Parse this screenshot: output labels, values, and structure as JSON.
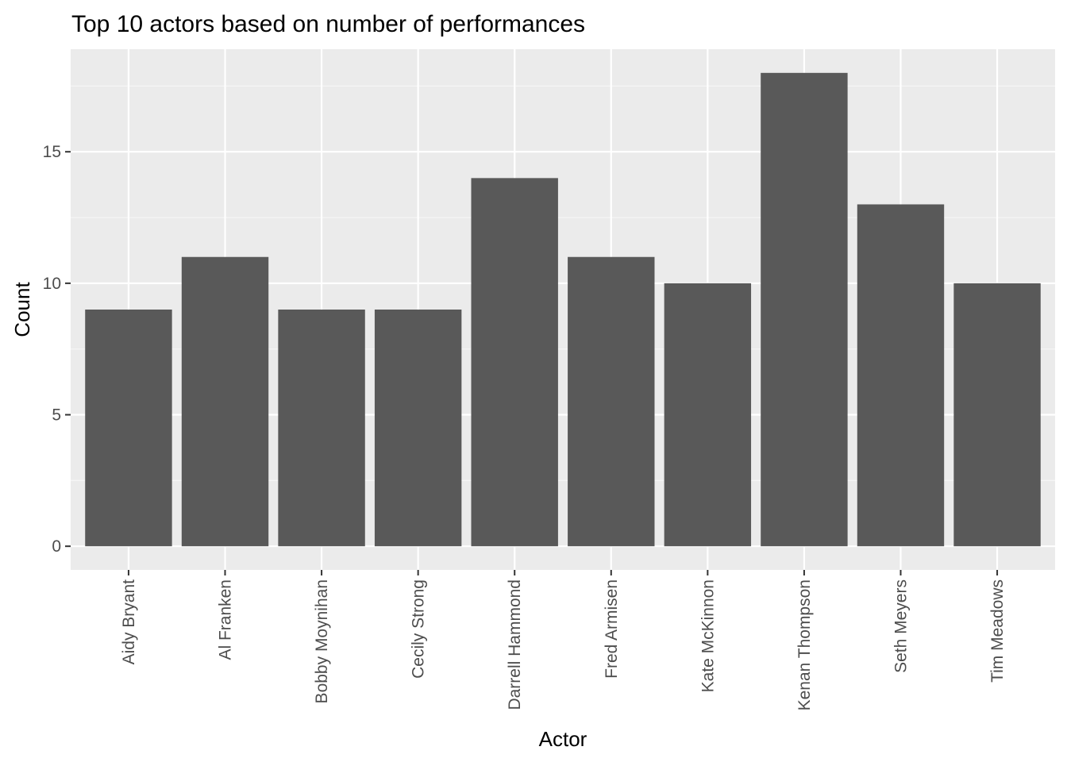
{
  "chart_data": {
    "type": "bar",
    "title": "Top 10 actors based on number of performances",
    "xlabel": "Actor",
    "ylabel": "Count",
    "categories": [
      "Aidy Bryant",
      "Al Franken",
      "Bobby Moynihan",
      "Cecily Strong",
      "Darrell Hammond",
      "Fred Armisen",
      "Kate McKinnon",
      "Kenan Thompson",
      "Seth Meyers",
      "Tim Meadows"
    ],
    "values": [
      9,
      11,
      9,
      9,
      14,
      11,
      10,
      18,
      13,
      10
    ],
    "ylim": [
      -0.9,
      18.9
    ],
    "yticks": [
      0,
      5,
      10,
      15
    ],
    "yticklabels": [
      "0",
      "5",
      "10",
      "15"
    ],
    "grid": true,
    "colors": {
      "bar": "#595959",
      "panel": "#ebebeb",
      "grid_major": "#ffffff",
      "grid_minor": "#f5f5f5",
      "tick": "#333333"
    }
  }
}
